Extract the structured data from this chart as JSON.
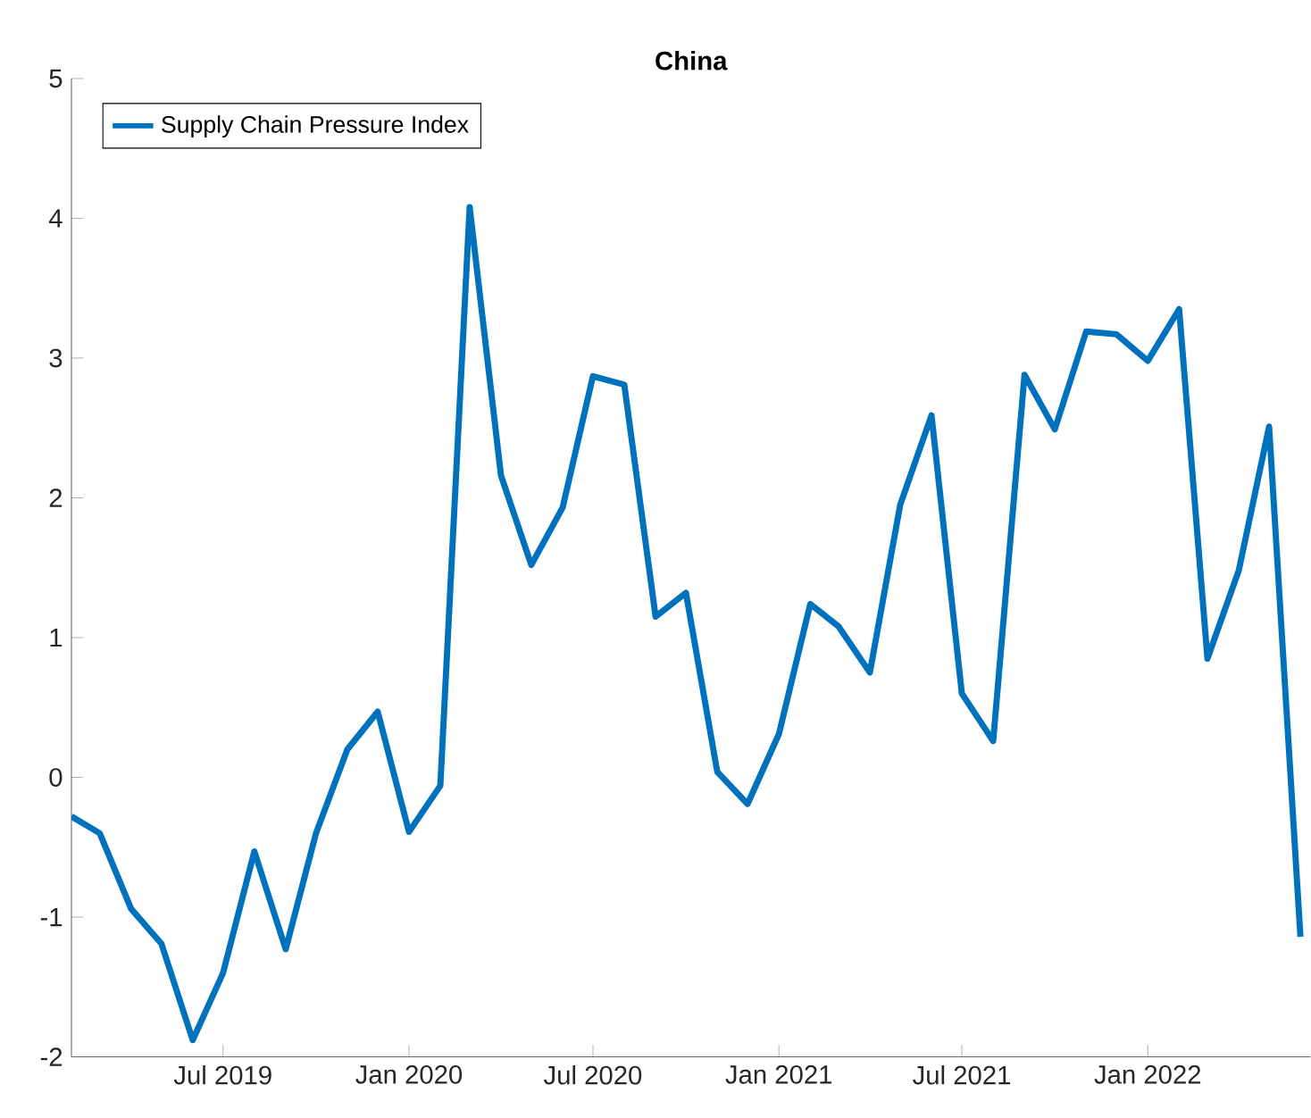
{
  "chart_data": {
    "type": "line",
    "title": "China",
    "x": [
      "2019-02",
      "2019-03",
      "2019-04",
      "2019-05",
      "2019-06",
      "2019-07",
      "2019-08",
      "2019-09",
      "2019-10",
      "2019-11",
      "2019-12",
      "2020-01",
      "2020-02",
      "2020-03",
      "2020-04",
      "2020-05",
      "2020-06",
      "2020-07",
      "2020-08",
      "2020-09",
      "2020-10",
      "2020-11",
      "2020-12",
      "2021-01",
      "2021-02",
      "2021-03",
      "2021-04",
      "2021-05",
      "2021-06",
      "2021-07",
      "2021-08",
      "2021-09",
      "2021-10",
      "2021-11",
      "2021-12",
      "2022-01",
      "2022-02",
      "2022-03",
      "2022-04",
      "2022-05",
      "2022-06"
    ],
    "series": [
      {
        "name": "Supply Chain Pressure Index",
        "color": "#0072bd",
        "values": [
          -0.28,
          -0.4,
          -0.94,
          -1.19,
          -1.88,
          -1.4,
          -0.53,
          -1.23,
          -0.4,
          0.2,
          0.47,
          -0.39,
          -0.06,
          4.08,
          2.16,
          1.52,
          1.93,
          2.87,
          2.81,
          1.15,
          1.32,
          0.04,
          -0.19,
          0.31,
          1.24,
          1.08,
          0.75,
          1.95,
          2.59,
          0.6,
          0.26,
          2.88,
          2.49,
          3.19,
          3.17,
          2.98,
          3.35,
          0.85,
          1.48,
          2.51,
          -1.14
        ]
      }
    ],
    "xlim": [
      "2019-02",
      "2022-06-11"
    ],
    "xticks": [
      {
        "value": "2019-07",
        "label": "Jul 2019"
      },
      {
        "value": "2020-01",
        "label": "Jan 2020"
      },
      {
        "value": "2020-07",
        "label": "Jul 2020"
      },
      {
        "value": "2021-01",
        "label": "Jan 2021"
      },
      {
        "value": "2021-07",
        "label": "Jul 2021"
      },
      {
        "value": "2022-01",
        "label": "Jan 2022"
      }
    ],
    "ylim": [
      -2,
      5
    ],
    "yticks": [
      -2,
      -1,
      0,
      1,
      2,
      3,
      4,
      5
    ],
    "legend": "top left",
    "grid": false,
    "marker": "none",
    "line_style": "solid"
  }
}
